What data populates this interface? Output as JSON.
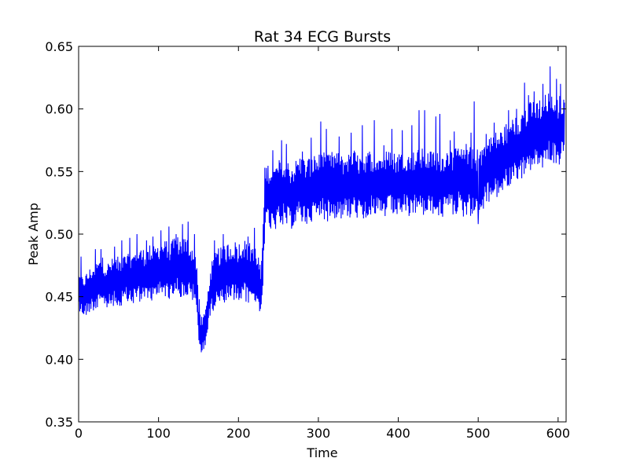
{
  "chart_data": {
    "type": "line",
    "title": "Rat 34 ECG Bursts",
    "xlabel": "Time",
    "ylabel": "Peak Amp",
    "xlim": [
      0,
      610
    ],
    "ylim": [
      0.35,
      0.65
    ],
    "x_ticks": [
      "0",
      "100",
      "200",
      "300",
      "400",
      "500",
      "600"
    ],
    "y_ticks": [
      "0.35",
      "0.40",
      "0.45",
      "0.50",
      "0.55",
      "0.60",
      "0.65"
    ],
    "grid": false,
    "legend": "none",
    "series_color": "#0000ff",
    "series": [
      {
        "x": [
          0,
          5,
          10,
          15,
          20,
          25,
          30,
          35,
          40,
          45,
          50,
          55,
          60,
          65,
          70,
          75,
          80,
          85,
          90,
          95,
          100,
          105,
          110,
          115,
          120,
          125,
          130,
          135,
          140,
          145,
          148,
          150,
          152,
          155,
          158,
          160,
          163,
          165,
          170,
          175,
          180,
          185,
          190,
          195,
          200,
          205,
          210,
          215,
          220,
          225,
          228,
          230,
          232,
          234,
          236,
          240,
          245,
          250,
          255,
          260,
          265,
          270,
          275,
          280,
          285,
          290,
          295,
          300,
          305,
          310,
          315,
          320,
          325,
          330,
          335,
          340,
          345,
          350,
          355,
          360,
          365,
          370,
          375,
          380,
          385,
          390,
          395,
          400,
          405,
          410,
          415,
          420,
          425,
          430,
          435,
          440,
          445,
          450,
          455,
          460,
          465,
          470,
          475,
          480,
          485,
          490,
          495,
          500,
          505,
          510,
          515,
          520,
          525,
          530,
          535,
          540,
          545,
          550,
          555,
          560,
          565,
          570,
          575,
          580,
          585,
          590,
          595,
          600,
          605,
          608
        ],
        "y": [
          0.455,
          0.45,
          0.452,
          0.456,
          0.458,
          0.46,
          0.462,
          0.458,
          0.46,
          0.462,
          0.461,
          0.463,
          0.465,
          0.462,
          0.466,
          0.468,
          0.467,
          0.466,
          0.47,
          0.468,
          0.472,
          0.471,
          0.473,
          0.47,
          0.474,
          0.475,
          0.472,
          0.474,
          0.47,
          0.468,
          0.46,
          0.43,
          0.422,
          0.42,
          0.425,
          0.43,
          0.445,
          0.455,
          0.462,
          0.466,
          0.465,
          0.468,
          0.47,
          0.47,
          0.468,
          0.472,
          0.47,
          0.468,
          0.47,
          0.462,
          0.452,
          0.47,
          0.505,
          0.528,
          0.532,
          0.53,
          0.528,
          0.532,
          0.535,
          0.533,
          0.53,
          0.532,
          0.536,
          0.535,
          0.533,
          0.536,
          0.538,
          0.537,
          0.539,
          0.536,
          0.538,
          0.54,
          0.538,
          0.537,
          0.54,
          0.539,
          0.541,
          0.538,
          0.537,
          0.54,
          0.541,
          0.539,
          0.542,
          0.538,
          0.54,
          0.541,
          0.539,
          0.54,
          0.542,
          0.541,
          0.538,
          0.541,
          0.542,
          0.543,
          0.54,
          0.541,
          0.542,
          0.541,
          0.539,
          0.543,
          0.542,
          0.54,
          0.545,
          0.54,
          0.543,
          0.542,
          0.54,
          0.54,
          0.545,
          0.55,
          0.552,
          0.555,
          0.556,
          0.558,
          0.562,
          0.565,
          0.568,
          0.57,
          0.572,
          0.575,
          0.578,
          0.58,
          0.582,
          0.58,
          0.585,
          0.586,
          0.584,
          0.582,
          0.585,
          0.583
        ],
        "amplitude": [
          0.015,
          0.016,
          0.018,
          0.018,
          0.019,
          0.02,
          0.02,
          0.019,
          0.02,
          0.02,
          0.021,
          0.02,
          0.02,
          0.021,
          0.021,
          0.022,
          0.022,
          0.022,
          0.023,
          0.022,
          0.022,
          0.023,
          0.023,
          0.023,
          0.024,
          0.024,
          0.025,
          0.025,
          0.024,
          0.022,
          0.02,
          0.018,
          0.016,
          0.015,
          0.015,
          0.016,
          0.018,
          0.02,
          0.022,
          0.024,
          0.024,
          0.025,
          0.025,
          0.025,
          0.026,
          0.026,
          0.025,
          0.025,
          0.024,
          0.022,
          0.02,
          0.02,
          0.022,
          0.025,
          0.026,
          0.026,
          0.026,
          0.027,
          0.028,
          0.028,
          0.027,
          0.026,
          0.027,
          0.028,
          0.027,
          0.027,
          0.026,
          0.027,
          0.028,
          0.027,
          0.027,
          0.028,
          0.027,
          0.026,
          0.026,
          0.027,
          0.027,
          0.026,
          0.026,
          0.027,
          0.027,
          0.026,
          0.026,
          0.027,
          0.027,
          0.026,
          0.027,
          0.026,
          0.026,
          0.027,
          0.027,
          0.026,
          0.026,
          0.027,
          0.027,
          0.026,
          0.026,
          0.027,
          0.027,
          0.026,
          0.026,
          0.027,
          0.027,
          0.028,
          0.028,
          0.028,
          0.028,
          0.028,
          0.028,
          0.027,
          0.027,
          0.027,
          0.027,
          0.027,
          0.027,
          0.027,
          0.027,
          0.027,
          0.028,
          0.028,
          0.028,
          0.028,
          0.028,
          0.028,
          0.028,
          0.028,
          0.028,
          0.028,
          0.028,
          0.028
        ],
        "spikes": [
          [
            3,
            0.482
          ],
          [
            21,
            0.488
          ],
          [
            28,
            0.488
          ],
          [
            45,
            0.49
          ],
          [
            54,
            0.495
          ],
          [
            64,
            0.497
          ],
          [
            73,
            0.5
          ],
          [
            85,
            0.495
          ],
          [
            93,
            0.498
          ],
          [
            103,
            0.503
          ],
          [
            113,
            0.506
          ],
          [
            122,
            0.5
          ],
          [
            130,
            0.508
          ],
          [
            137,
            0.51
          ],
          [
            145,
            0.5
          ],
          [
            151,
            0.448
          ],
          [
            157,
            0.436
          ],
          [
            170,
            0.495
          ],
          [
            181,
            0.5
          ],
          [
            198,
            0.488
          ],
          [
            212,
            0.498
          ],
          [
            220,
            0.505
          ],
          [
            233,
            0.553
          ],
          [
            243,
            0.567
          ],
          [
            254,
            0.575
          ],
          [
            260,
            0.572
          ],
          [
            280,
            0.566
          ],
          [
            291,
            0.577
          ],
          [
            303,
            0.59
          ],
          [
            310,
            0.584
          ],
          [
            326,
            0.578
          ],
          [
            341,
            0.581
          ],
          [
            355,
            0.587
          ],
          [
            370,
            0.591
          ],
          [
            382,
            0.571
          ],
          [
            392,
            0.584
          ],
          [
            405,
            0.583
          ],
          [
            417,
            0.587
          ],
          [
            426,
            0.599
          ],
          [
            433,
            0.599
          ],
          [
            447,
            0.594
          ],
          [
            452,
            0.596
          ],
          [
            465,
            0.575
          ],
          [
            470,
            0.582
          ],
          [
            485,
            0.572
          ],
          [
            491,
            0.581
          ],
          [
            495,
            0.606
          ],
          [
            500,
            0.535
          ],
          [
            500,
            0.508
          ],
          [
            510,
            0.58
          ],
          [
            520,
            0.589
          ],
          [
            538,
            0.599
          ],
          [
            548,
            0.6
          ],
          [
            558,
            0.621
          ],
          [
            563,
            0.611
          ],
          [
            570,
            0.614
          ],
          [
            581,
            0.62
          ],
          [
            590,
            0.634
          ],
          [
            598,
            0.624
          ],
          [
            603,
            0.62
          ]
        ]
      }
    ]
  }
}
